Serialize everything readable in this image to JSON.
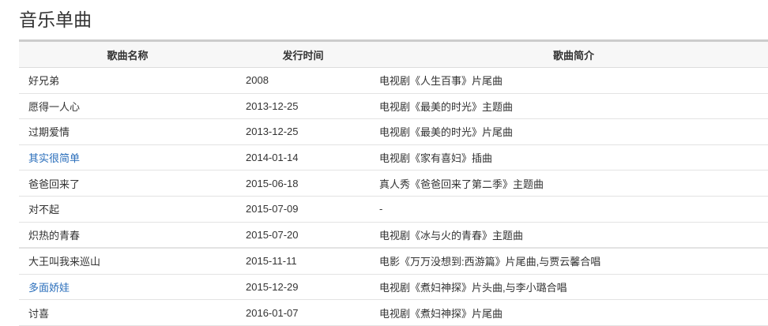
{
  "title": "音乐单曲",
  "colors": {
    "link": "#2a6ebb"
  },
  "table": {
    "headers": [
      "歌曲名称",
      "发行时间",
      "歌曲简介"
    ],
    "rows": [
      {
        "name": "好兄弟",
        "date": "2008",
        "desc": "电视剧《人生百事》片尾曲",
        "link": false
      },
      {
        "name": "愿得一人心",
        "date": "2013-12-25",
        "desc": "电视剧《最美的时光》主题曲",
        "link": false
      },
      {
        "name": "过期爱情",
        "date": "2013-12-25",
        "desc": "电视剧《最美的时光》片尾曲",
        "link": false
      },
      {
        "name": "其实很简单",
        "date": "2014-01-14",
        "desc": "电视剧《家有喜妇》插曲",
        "link": true
      },
      {
        "name": "爸爸回来了",
        "date": "2015-06-18",
        "desc": "真人秀《爸爸回来了第二季》主题曲",
        "link": false
      },
      {
        "name": "对不起",
        "date": "2015-07-09",
        "desc": "-",
        "link": false
      },
      {
        "name": "炽热的青春",
        "date": "2015-07-20",
        "desc": "电视剧《冰与火的青春》主题曲",
        "link": false
      },
      {
        "name": "大王叫我来巡山",
        "date": "2015-11-11",
        "desc": "电影《万万没想到:西游篇》片尾曲,与贾云馨合唱",
        "link": false
      },
      {
        "name": "多面娇娃",
        "date": "2015-12-29",
        "desc": "电视剧《煮妇神探》片头曲,与李小璐合唱",
        "link": true
      },
      {
        "name": "讨喜",
        "date": "2016-01-07",
        "desc": "电视剧《煮妇神探》片尾曲",
        "link": false
      }
    ]
  }
}
